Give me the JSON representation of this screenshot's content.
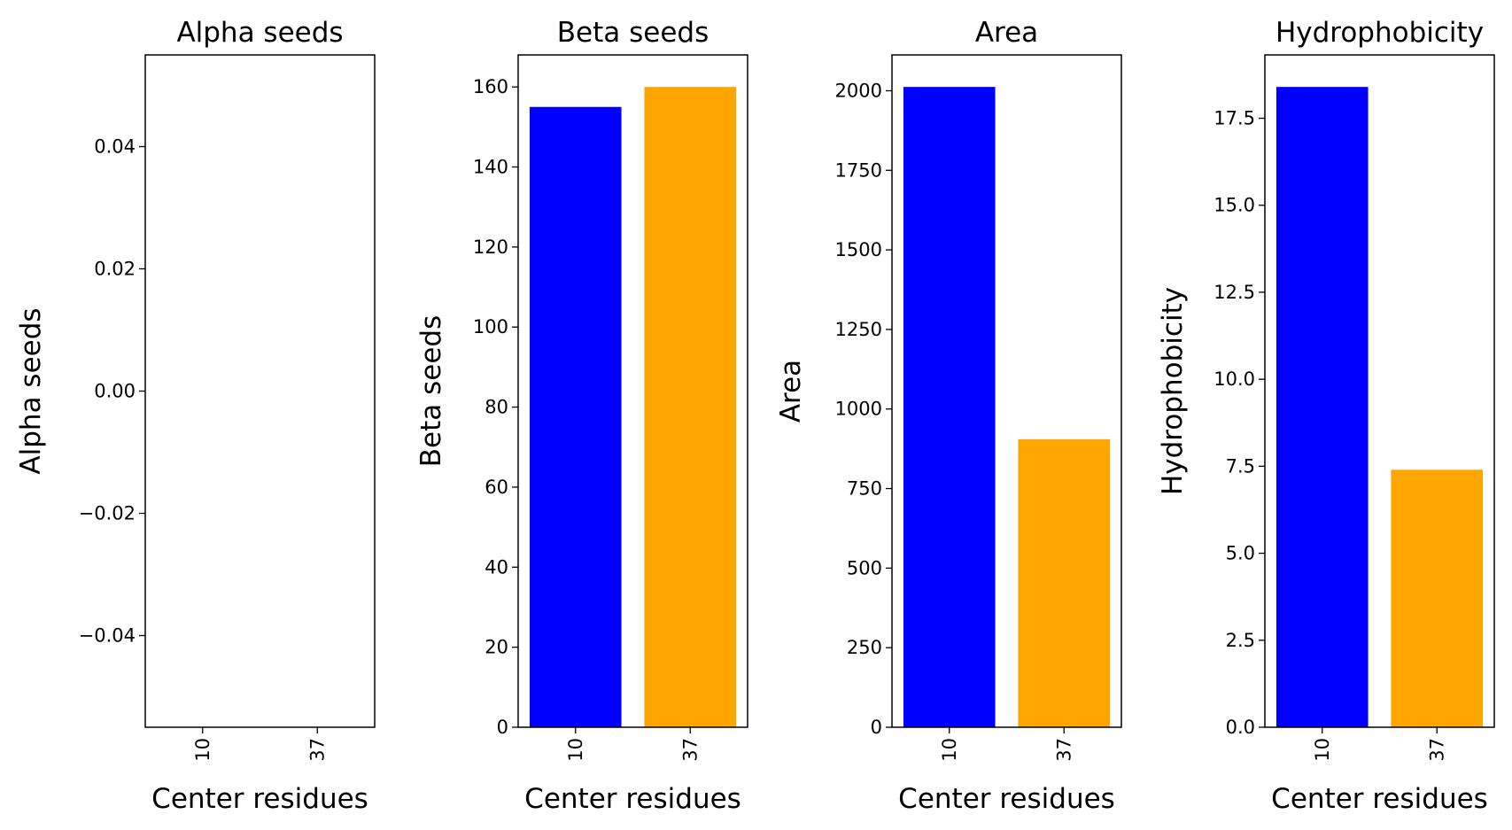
{
  "chart_data": [
    {
      "type": "bar",
      "title": "Alpha seeds",
      "xlabel": "Center residues",
      "ylabel": "Alpha seeds",
      "categories": [
        "10",
        "37"
      ],
      "values": [
        0,
        0
      ],
      "ylim": [
        -0.055,
        0.055
      ],
      "yticks": [
        -0.04,
        -0.02,
        0.0,
        0.02,
        0.04
      ],
      "ytick_labels": [
        "−0.04",
        "−0.02",
        "0.00",
        "0.02",
        "0.04"
      ],
      "colors": [
        "#0000ff",
        "#ffa500"
      ],
      "grid": false
    },
    {
      "type": "bar",
      "title": "Beta seeds",
      "xlabel": "Center residues",
      "ylabel": "Beta seeds",
      "categories": [
        "10",
        "37"
      ],
      "values": [
        155,
        160
      ],
      "ylim": [
        0,
        168
      ],
      "yticks": [
        0,
        20,
        40,
        60,
        80,
        100,
        120,
        140,
        160
      ],
      "ytick_labels": [
        "0",
        "20",
        "40",
        "60",
        "80",
        "100",
        "120",
        "140",
        "160"
      ],
      "colors": [
        "#0000ff",
        "#ffa500"
      ],
      "grid": false
    },
    {
      "type": "bar",
      "title": "Area",
      "xlabel": "Center residues",
      "ylabel": "Area",
      "categories": [
        "10",
        "37"
      ],
      "values": [
        2012,
        905
      ],
      "ylim": [
        0,
        2112.6
      ],
      "yticks": [
        0,
        250,
        500,
        750,
        1000,
        1250,
        1500,
        1750,
        2000
      ],
      "ytick_labels": [
        "0",
        "250",
        "500",
        "750",
        "1000",
        "1250",
        "1500",
        "1750",
        "2000"
      ],
      "colors": [
        "#0000ff",
        "#ffa500"
      ],
      "grid": false
    },
    {
      "type": "bar",
      "title": "Hydrophobicity",
      "xlabel": "Center residues",
      "ylabel": "Hydrophobicity",
      "categories": [
        "10",
        "37"
      ],
      "values": [
        18.4,
        7.4
      ],
      "ylim": [
        0,
        19.32
      ],
      "yticks": [
        0.0,
        2.5,
        5.0,
        7.5,
        10.0,
        12.5,
        15.0,
        17.5
      ],
      "ytick_labels": [
        "0.0",
        "2.5",
        "5.0",
        "7.5",
        "10.0",
        "12.5",
        "15.0",
        "17.5"
      ],
      "colors": [
        "#0000ff",
        "#ffa500"
      ],
      "grid": false
    }
  ]
}
